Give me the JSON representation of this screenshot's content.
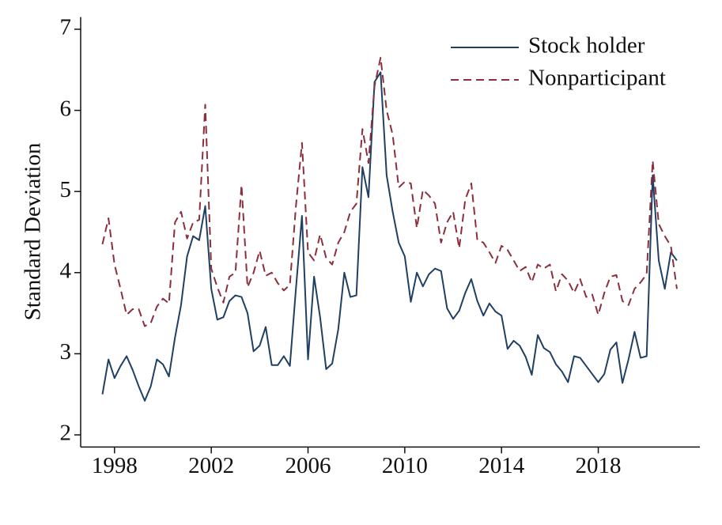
{
  "chart_data": {
    "type": "line",
    "ylabel": "Standard Deviation",
    "x": [
      1997.5,
      1997.75,
      1998,
      1998.25,
      1998.5,
      1998.75,
      1999,
      1999.25,
      1999.5,
      1999.75,
      2000,
      2000.25,
      2000.5,
      2000.75,
      2001,
      2001.25,
      2001.5,
      2001.75,
      2002,
      2002.25,
      2002.5,
      2002.75,
      2003,
      2003.25,
      2003.5,
      2003.75,
      2004,
      2004.25,
      2004.5,
      2004.75,
      2005,
      2005.25,
      2005.5,
      2005.75,
      2006,
      2006.25,
      2006.5,
      2006.75,
      2007,
      2007.25,
      2007.5,
      2007.75,
      2008,
      2008.25,
      2008.5,
      2008.75,
      2009,
      2009.25,
      2009.5,
      2009.75,
      2010,
      2010.25,
      2010.5,
      2010.75,
      2011,
      2011.25,
      2011.5,
      2011.75,
      2012,
      2012.25,
      2012.5,
      2012.75,
      2013,
      2013.25,
      2013.5,
      2013.75,
      2014,
      2014.25,
      2014.5,
      2014.75,
      2015,
      2015.25,
      2015.5,
      2015.75,
      2016,
      2016.25,
      2016.5,
      2016.75,
      2017,
      2017.25,
      2017.5,
      2017.75,
      2018,
      2018.25,
      2018.5,
      2018.75,
      2019,
      2019.25,
      2019.5,
      2019.75,
      2020,
      2020.25,
      2020.5,
      2020.75,
      2021,
      2021.25
    ],
    "series": [
      {
        "name": "Stock holder",
        "color": "#1f3f63",
        "dash": false,
        "values": [
          2.5,
          2.93,
          2.7,
          2.85,
          2.97,
          2.8,
          2.6,
          2.42,
          2.6,
          2.93,
          2.87,
          2.72,
          3.2,
          3.6,
          4.2,
          4.45,
          4.4,
          4.82,
          3.8,
          3.42,
          3.45,
          3.65,
          3.72,
          3.7,
          3.5,
          3.03,
          3.1,
          3.33,
          2.86,
          2.86,
          2.97,
          2.85,
          3.8,
          4.7,
          2.93,
          3.95,
          3.45,
          2.81,
          2.88,
          3.3,
          4.0,
          3.7,
          3.72,
          5.3,
          4.93,
          6.35,
          6.47,
          5.2,
          4.75,
          4.37,
          4.2,
          3.64,
          4.0,
          3.83,
          3.98,
          4.05,
          4.02,
          3.56,
          3.43,
          3.53,
          3.75,
          3.92,
          3.65,
          3.47,
          3.62,
          3.52,
          3.47,
          3.06,
          3.16,
          3.1,
          2.96,
          2.74,
          3.23,
          3.07,
          3.02,
          2.87,
          2.78,
          2.65,
          2.97,
          2.95,
          2.85,
          2.75,
          2.65,
          2.75,
          3.05,
          3.14,
          2.64,
          2.93,
          3.27,
          2.95,
          2.97,
          5.2,
          4.15,
          3.8,
          4.25,
          4.15
        ]
      },
      {
        "name": "Nonparticipant",
        "color": "#8c2f3c",
        "dash": true,
        "values": [
          4.35,
          4.67,
          4.1,
          3.8,
          3.48,
          3.55,
          3.55,
          3.34,
          3.38,
          3.58,
          3.68,
          3.62,
          4.62,
          4.75,
          4.42,
          4.62,
          4.65,
          6.07,
          4.05,
          3.82,
          3.63,
          3.95,
          4.0,
          5.08,
          3.82,
          4.0,
          4.27,
          3.96,
          4.0,
          3.87,
          3.78,
          3.85,
          4.82,
          5.6,
          4.25,
          4.15,
          4.47,
          4.18,
          4.1,
          4.37,
          4.5,
          4.75,
          4.85,
          5.77,
          5.35,
          6.3,
          6.65,
          6.0,
          5.7,
          5.05,
          5.12,
          5.1,
          4.55,
          5.02,
          4.95,
          4.85,
          4.37,
          4.62,
          4.75,
          4.3,
          4.9,
          5.1,
          4.4,
          4.37,
          4.25,
          4.12,
          4.33,
          4.28,
          4.15,
          4.02,
          4.07,
          3.88,
          4.1,
          4.05,
          4.1,
          3.77,
          3.98,
          3.9,
          3.75,
          3.92,
          3.7,
          3.73,
          3.48,
          3.75,
          3.95,
          3.97,
          3.65,
          3.6,
          3.8,
          3.88,
          3.98,
          5.38,
          4.6,
          4.45,
          4.33,
          3.8
        ]
      }
    ],
    "xlim": [
      1996.6,
      2022.2
    ],
    "xticks": [
      1998,
      2002,
      2006,
      2010,
      2014,
      2018
    ],
    "ylim": [
      1.85,
      7.15
    ],
    "yticks": [
      2,
      3,
      4,
      5,
      6,
      7
    ],
    "grid": false,
    "legend": "upper right"
  }
}
